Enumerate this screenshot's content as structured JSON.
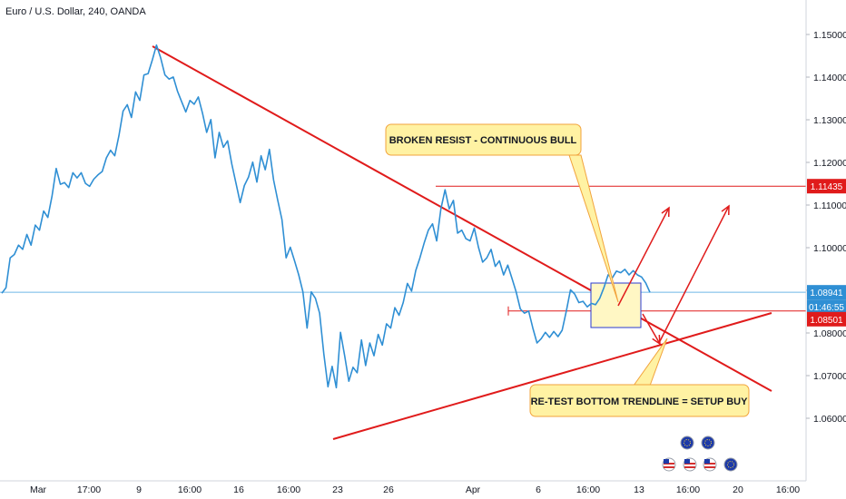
{
  "header": {
    "symbol_title": "Euro / U.S. Dollar, 240, OANDA"
  },
  "colors": {
    "price_line": "#2f8fd4",
    "trendline": "#e01b1b",
    "callout_fill": "#fff2a3",
    "callout_border": "#f2a33c",
    "tag_red": "#e01b1b",
    "tag_blue": "#2f8fd4",
    "current_price_line": "#6fb7e6",
    "box_fill": "#fff7c4",
    "box_border": "#2b3bd1"
  },
  "chart_data": {
    "type": "line",
    "instrument": "EUR/USD",
    "ylim": [
      1.0565,
      1.1545
    ],
    "y_ticks": [
      "1.15000",
      "1.14000",
      "1.13000",
      "1.12000",
      "1.11000",
      "1.10000",
      "1.09000",
      "1.08000",
      "1.07000",
      "1.06000"
    ],
    "x_ticks": [
      "Mar",
      "17:00",
      "9",
      "16:00",
      "16",
      "16:00",
      "23",
      "26",
      "Apr",
      "6",
      "16:00",
      "13",
      "16:00",
      "20",
      "16:00"
    ],
    "series": [
      {
        "values": [
          1.0892,
          1.0905,
          1.0975,
          1.0983,
          1.1005,
          1.0995,
          1.103,
          1.1005,
          1.1052,
          1.104,
          1.1085,
          1.107,
          1.112,
          1.1185,
          1.1148,
          1.1152,
          1.114,
          1.1175,
          1.1163,
          1.1175,
          1.115,
          1.1143,
          1.116,
          1.117,
          1.1178,
          1.121,
          1.1228,
          1.1215,
          1.1262,
          1.132,
          1.1335,
          1.1305,
          1.1365,
          1.1345,
          1.1405,
          1.1408,
          1.144,
          1.1475,
          1.1445,
          1.1405,
          1.1395,
          1.14,
          1.1367,
          1.1342,
          1.1318,
          1.1345,
          1.1336,
          1.1353,
          1.1315,
          1.127,
          1.13,
          1.121,
          1.127,
          1.1235,
          1.125,
          1.1195,
          1.115,
          1.1105,
          1.1145,
          1.1165,
          1.12,
          1.1153,
          1.1215,
          1.1182,
          1.123,
          1.1158,
          1.111,
          1.1065,
          1.0975,
          1.1,
          1.0968,
          1.0935,
          1.0895,
          1.081,
          1.0895,
          1.088,
          1.0845,
          1.075,
          1.0672,
          1.072,
          1.067,
          1.08,
          1.0745,
          1.0685,
          1.0718,
          1.0705,
          1.0782,
          1.0722,
          1.0775,
          1.0745,
          1.0795,
          1.077,
          1.082,
          1.081,
          1.0858,
          1.084,
          1.087,
          1.0915,
          1.0897,
          1.0945,
          1.0975,
          1.101,
          1.104,
          1.1055,
          1.1015,
          1.109,
          1.1135,
          1.109,
          1.111,
          1.1033,
          1.104,
          1.102,
          1.1015,
          1.1045,
          1.1,
          1.0965,
          1.0975,
          1.0995,
          1.0955,
          1.0968,
          1.0935,
          1.0958,
          1.0927,
          1.0895,
          1.0855,
          1.0845,
          1.085,
          1.081,
          1.0775,
          1.0785,
          1.08,
          1.0788,
          1.0802,
          1.079,
          1.0805,
          1.085,
          1.09,
          1.089,
          1.087,
          1.0873,
          1.086,
          1.0868,
          1.0865,
          1.088,
          1.0905,
          1.0935,
          1.0928,
          1.0944,
          1.094,
          1.0948,
          1.0935,
          1.0945,
          1.0935,
          1.093,
          1.0916,
          1.0894
        ]
      }
    ],
    "current_price": {
      "value": 1.08941,
      "label": "1.08941",
      "countdown": "01:46:55"
    },
    "levels": [
      {
        "label": "1.11435",
        "value": 1.11435
      },
      {
        "label": "1.08501",
        "value": 1.08501
      }
    ],
    "annotations": [
      {
        "text": "BROKEN RESIST - CONTINUOUS BULL"
      },
      {
        "text": "RE-TEST BOTTOM TRENDLINE = SETUP BUY"
      }
    ],
    "grid": false
  }
}
